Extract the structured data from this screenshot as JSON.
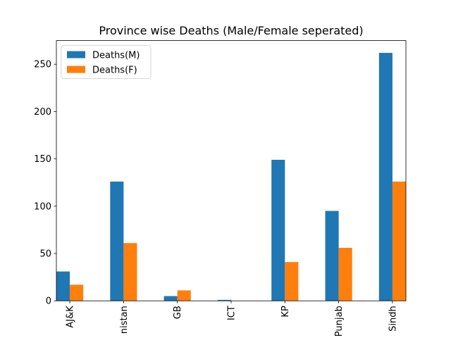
{
  "chart_data": {
    "type": "bar",
    "title": "Province wise Deaths (Male/Female seperated)",
    "xlabel": "",
    "ylabel": "",
    "categories": [
      "AJ&K",
      "Balochistan",
      "GB",
      "ICT",
      "KP",
      "Punjab",
      "Sindh"
    ],
    "category_tick_labels": [
      "AJ&K",
      "nistan",
      "GB",
      "ICT",
      "KP",
      "Punjab",
      "Sindh"
    ],
    "series": [
      {
        "name": "Deaths(M)",
        "color": "#1f77b4",
        "values": [
          31,
          126,
          5,
          1,
          149,
          95,
          262
        ]
      },
      {
        "name": "Deaths(F)",
        "color": "#ff7f0e",
        "values": [
          17,
          61,
          11,
          0,
          41,
          56,
          126
        ]
      }
    ],
    "ylim": [
      0,
      275
    ],
    "yticks": [
      0,
      50,
      100,
      150,
      200,
      250
    ],
    "grid": false,
    "legend_position": "top-left"
  }
}
